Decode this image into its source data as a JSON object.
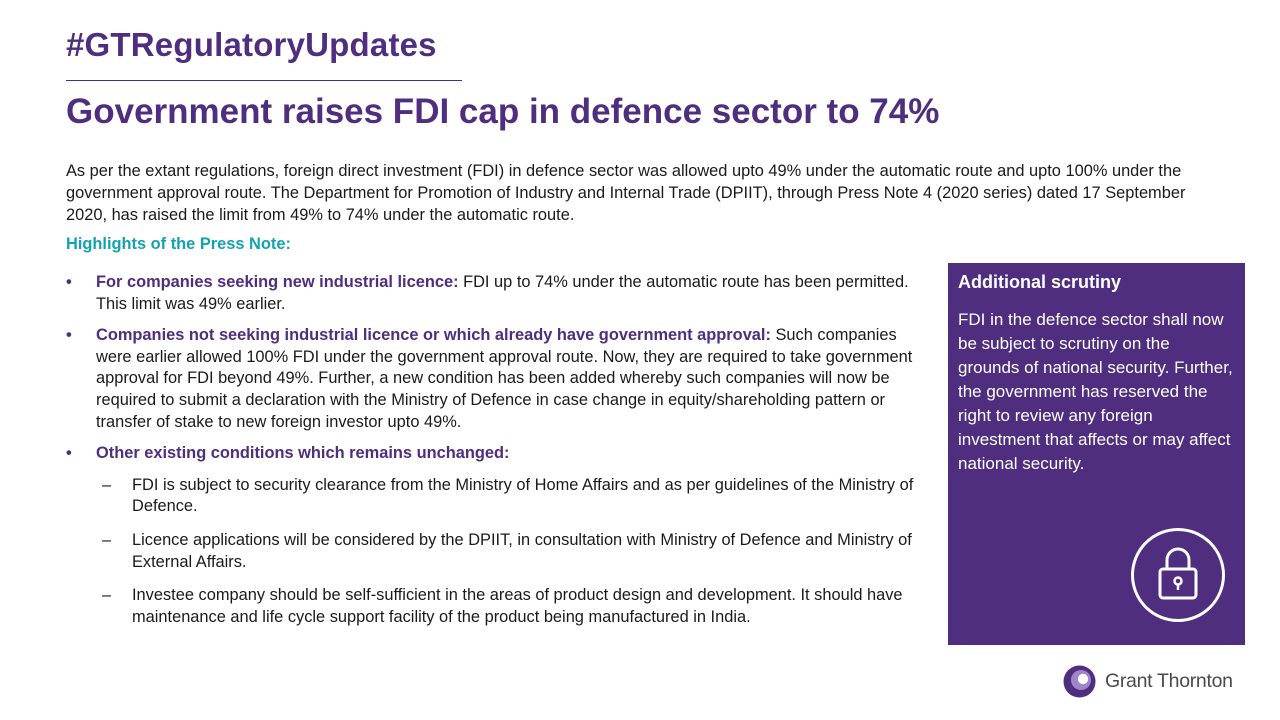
{
  "header": {
    "hashtag": "#GTRegulatoryUpdates",
    "title": "Government raises FDI cap in defence sector to 74%"
  },
  "intro": "As per the extant regulations, foreign direct investment (FDI) in defence sector was allowed upto 49% under the automatic route and upto 100% under the government approval route. The Department for Promotion of Industry and Internal Trade (DPIIT), through Press Note 4 (2020 series) dated 17 September 2020, has raised the limit from 49% to 74% under the automatic route.",
  "highlights": {
    "heading": "Highlights of the Press Note:",
    "bullets": [
      {
        "lead": "For companies seeking new industrial licence:",
        "text": " FDI up to 74% under the automatic route has been permitted. This limit was 49% earlier."
      },
      {
        "lead": "Companies not seeking industrial licence or which already have government approval:",
        "text": " Such companies were earlier allowed 100% FDI under the government approval route. Now, they are required to take government approval for FDI beyond 49%. Further, a new condition has been added whereby such companies will now be required to submit a declaration with the Ministry of Defence in case change in equity/shareholding pattern or transfer of stake to new foreign investor upto 49%."
      },
      {
        "lead": "Other existing conditions which remains unchanged:",
        "text": ""
      }
    ],
    "sub_items": [
      "FDI is subject to security clearance from the Ministry of Home Affairs and as per guidelines of the Ministry of Defence.",
      "Licence applications will be considered by the DPIIT, in consultation with Ministry of Defence and Ministry of External Affairs.",
      "Investee company should be self-sufficient in the areas of product design and development. It should have maintenance and life cycle support facility of the product being manufactured in India."
    ],
    "bullet_glyph": "•",
    "dash_glyph": "–"
  },
  "sidebar": {
    "heading": "Additional scrutiny",
    "body": "FDI in the defence sector shall now be subject to scrutiny on the grounds of national security. Further, the government has reserved the right to review any foreign investment that affects or may affect national security.",
    "icon": "lock-icon"
  },
  "brand": {
    "name": "Grant Thornton",
    "icon": "grant-thornton-logo-icon"
  },
  "colors": {
    "primary_purple": "#4f2d7f",
    "teal": "#12a3b0",
    "logo_purple_light": "#a285c8"
  }
}
